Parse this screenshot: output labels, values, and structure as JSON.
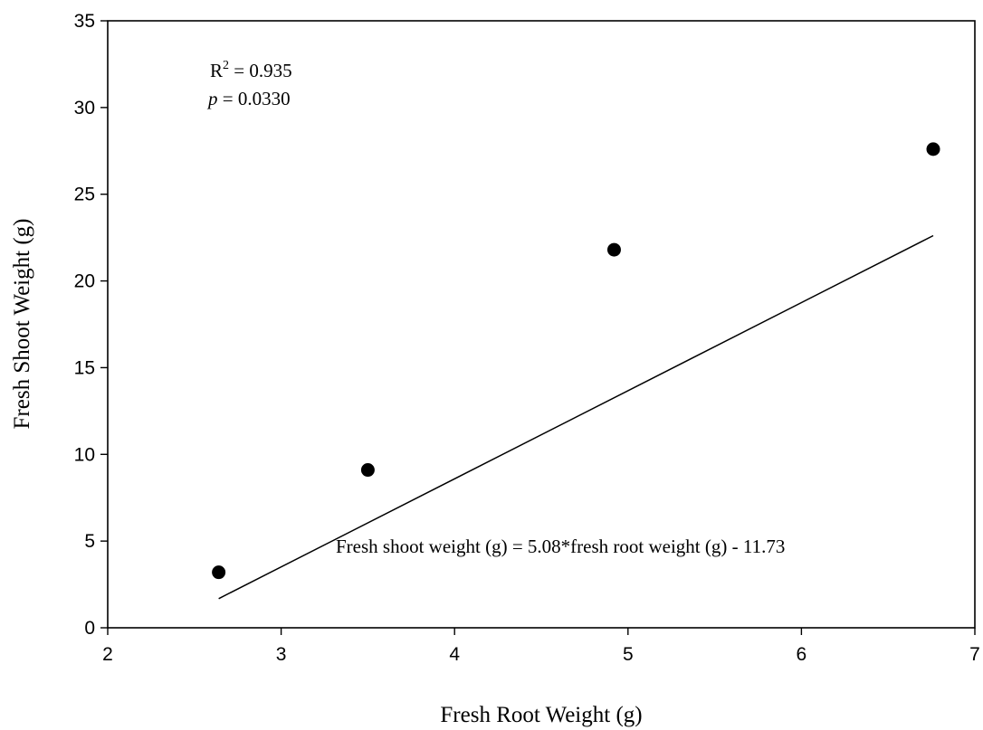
{
  "chart_data": {
    "type": "scatter",
    "xlabel": "Fresh Root Weight (g)",
    "ylabel": "Fresh Shoot Weight (g)",
    "xlim": [
      2,
      7
    ],
    "ylim": [
      0,
      35
    ],
    "xticks": [
      2,
      3,
      4,
      5,
      6,
      7
    ],
    "yticks": [
      0,
      5,
      10,
      15,
      20,
      25,
      30,
      35
    ],
    "grid": false,
    "points": [
      {
        "x": 2.64,
        "y": 3.2
      },
      {
        "x": 3.5,
        "y": 9.1
      },
      {
        "x": 4.92,
        "y": 21.8
      },
      {
        "x": 6.76,
        "y": 27.6
      }
    ],
    "regression": {
      "slope": 5.08,
      "intercept": -11.73,
      "x_range": [
        2.64,
        6.76
      ]
    },
    "annotations": {
      "r2_label": "R",
      "r2_sup": "2",
      "r2_value": " = 0.935",
      "p_label": "p",
      "p_value": " = 0.0330",
      "equation": "Fresh shoot weight (g) = 5.08*fresh root weight (g) - 11.73"
    }
  }
}
